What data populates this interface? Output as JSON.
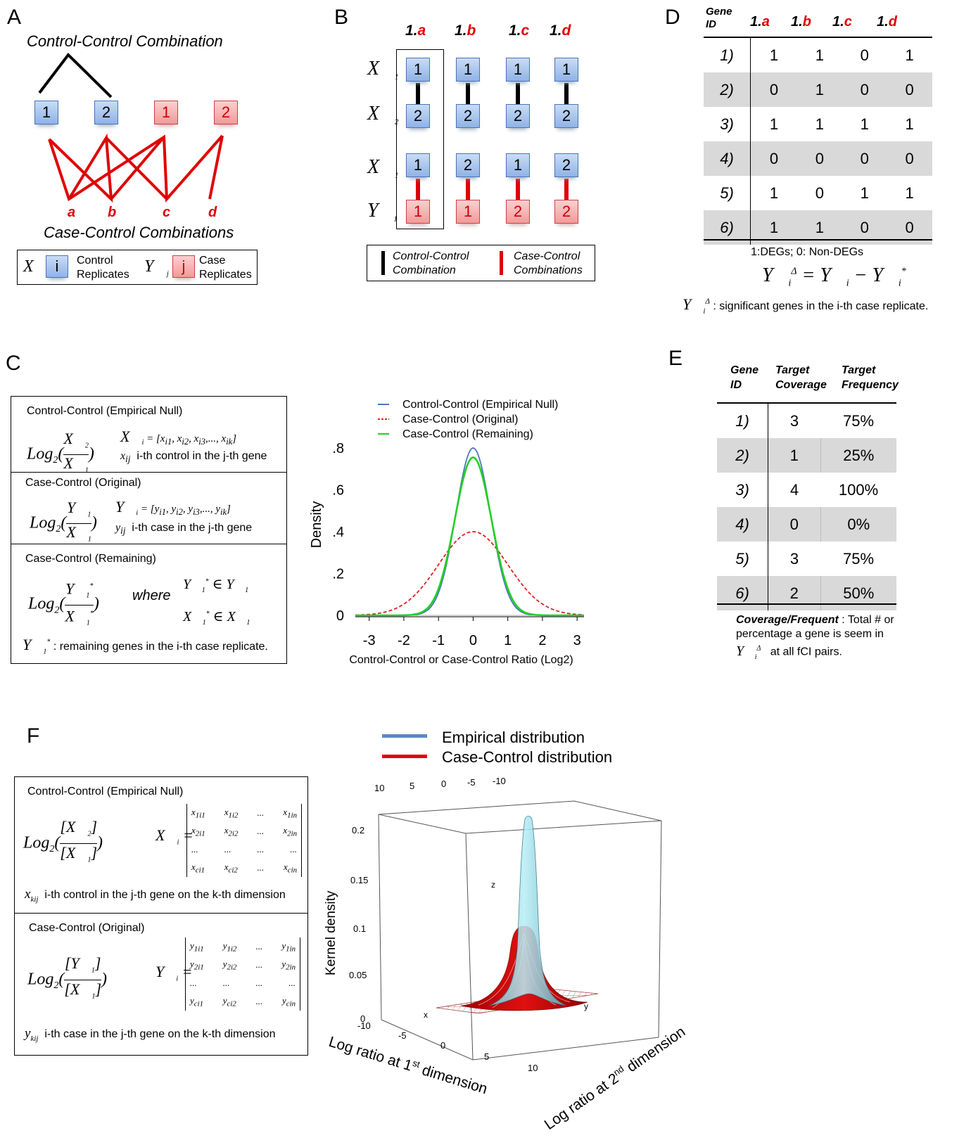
{
  "panels": {
    "A": "A",
    "B": "B",
    "C": "C",
    "D": "D",
    "E": "E",
    "F": "F"
  },
  "panelA": {
    "title": "Control-Control Combination",
    "subtitle": "Case-Control Combinations",
    "controls": [
      "1",
      "2"
    ],
    "cases": [
      "1",
      "2"
    ],
    "letters": [
      "a",
      "b",
      "c",
      "d"
    ],
    "legend": {
      "ctrl_symbol": "i",
      "ctrl_text": "Control Replicates",
      "case_symbol": "j",
      "case_text": "Case Replicates"
    }
  },
  "panelB": {
    "headers": [
      {
        "num": "1.",
        "let": "a"
      },
      {
        "num": "1.",
        "let": "b"
      },
      {
        "num": "1.",
        "let": "c"
      },
      {
        "num": "1.",
        "let": "d"
      }
    ],
    "top": [
      [
        "1",
        "2"
      ],
      [
        "1",
        "2"
      ],
      [
        "1",
        "2"
      ],
      [
        "1",
        "2"
      ]
    ],
    "bottom": [
      [
        "1",
        "1"
      ],
      [
        "2",
        "1"
      ],
      [
        "1",
        "2"
      ],
      [
        "2",
        "2"
      ]
    ],
    "legend_cc": "Control-Control Combination",
    "legend_case": "Case-Control Combinations"
  },
  "panelD": {
    "col_gene": "Gene ID",
    "cols": [
      "1.a",
      "1.b",
      "1.c",
      "1.d"
    ],
    "rows": [
      {
        "id": "1)",
        "v": [
          "1",
          "1",
          "0",
          "1"
        ]
      },
      {
        "id": "2)",
        "v": [
          "0",
          "1",
          "0",
          "0"
        ]
      },
      {
        "id": "3)",
        "v": [
          "1",
          "1",
          "1",
          "1"
        ]
      },
      {
        "id": "4)",
        "v": [
          "0",
          "0",
          "0",
          "0"
        ]
      },
      {
        "id": "5)",
        "v": [
          "1",
          "0",
          "1",
          "1"
        ]
      },
      {
        "id": "6)",
        "v": [
          "1",
          "1",
          "0",
          "0"
        ]
      }
    ],
    "note": "1:DEGs; 0: Non-DEGs",
    "caption": ": significant genes in the i-th case replicate."
  },
  "panelC": {
    "sec1_title": "Control-Control (Empirical Null)",
    "sec1_desc": "i-th control in the j-th gene",
    "sec2_title": "Case-Control (Original)",
    "sec2_desc": "i-th case in the j-th gene",
    "sec3_title": "Case-Control (Remaining)",
    "where": "where",
    "sec3_desc": ": remaining genes in the i-th case replicate."
  },
  "chart_data": {
    "type": "line",
    "xlabel": "Control-Control or Case-Control Ratio (Log2)",
    "ylabel": "Density",
    "xlim": [
      -3.4,
      3.2
    ],
    "ylim": [
      0,
      0.8
    ],
    "xticks": [
      "-3",
      "-2",
      "-1",
      "0",
      "1",
      "2",
      "3"
    ],
    "yticks": [
      "0",
      ".2",
      ".4",
      ".6",
      ".8"
    ],
    "series": [
      {
        "name": "Control-Control (Empirical Null)",
        "color": "#4a78c2",
        "style": "solid",
        "mean": 0,
        "sd": 0.5,
        "peak": 0.8
      },
      {
        "name": "Case-Control (Original)",
        "color": "#e02020",
        "style": "dashed",
        "mean": 0,
        "sd": 1.0,
        "peak": 0.4
      },
      {
        "name": "Case-Control (Remaining)",
        "color": "#22d022",
        "style": "solid",
        "mean": 0,
        "sd": 0.53,
        "peak": 0.755
      }
    ]
  },
  "panelE": {
    "headers": [
      "Gene ID",
      "Target Coverage",
      "Target Frequency"
    ],
    "rows": [
      {
        "id": "1)",
        "cov": "3",
        "freq": "75%"
      },
      {
        "id": "2)",
        "cov": "1",
        "freq": "25%"
      },
      {
        "id": "3)",
        "cov": "4",
        "freq": "100%"
      },
      {
        "id": "4)",
        "cov": "0",
        "freq": "0%"
      },
      {
        "id": "5)",
        "cov": "3",
        "freq": "75%"
      },
      {
        "id": "6)",
        "cov": "2",
        "freq": "50%"
      }
    ],
    "note_bold": "Coverage/Frequent",
    "note_1": ": Total # or",
    "note_2": "percentage a gene is seem in",
    "note_3": "at all fCI pairs."
  },
  "panelF": {
    "sec1_title": "Control-Control (Empirical Null)",
    "sec1_desc": "i-th control in the j-th gene on the k-th dimension",
    "sec2_title": "Case-Control (Original)",
    "sec2_desc": "i-th case in the j-th gene on the k-th dimension",
    "legend_emp": "Empirical distribution",
    "legend_case": "Case-Control distribution",
    "zlabel": "Kernel density",
    "xlabel": "Log ratio at 1st dimension",
    "ylabel": "Log ratio at 2nd dimension",
    "zticks": [
      "0",
      "0.05",
      "0.1",
      "0.15",
      "0.2"
    ],
    "xticks": [
      "-10",
      "-5",
      "0",
      "5",
      "10"
    ],
    "topticks": [
      "10",
      "5",
      "0",
      "-5",
      "-10"
    ],
    "axis_x": "x",
    "axis_y": "y",
    "axis_z": "z"
  }
}
